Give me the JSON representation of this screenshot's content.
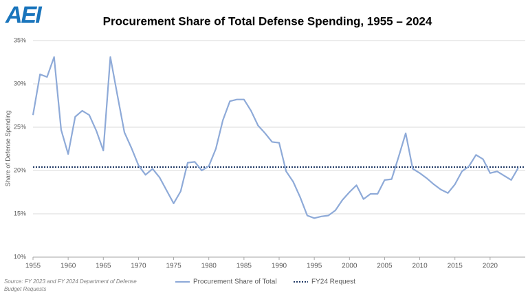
{
  "chart_data": {
    "type": "line",
    "logo": "AEI",
    "title": "Procurement Share of Total Defense Spending, 1955 – 2024",
    "y_label": "Share of Defense Spending",
    "source": "Source: FY 2023  and FY 2024  Department of Defense Budget Requests",
    "x": [
      1955,
      1956,
      1957,
      1958,
      1959,
      1960,
      1961,
      1962,
      1963,
      1964,
      1965,
      1966,
      1967,
      1968,
      1969,
      1970,
      1971,
      1972,
      1973,
      1974,
      1975,
      1976,
      1977,
      1978,
      1979,
      1980,
      1981,
      1982,
      1983,
      1984,
      1985,
      1986,
      1987,
      1988,
      1989,
      1990,
      1991,
      1992,
      1993,
      1994,
      1995,
      1996,
      1997,
      1998,
      1999,
      2000,
      2001,
      2002,
      2003,
      2004,
      2005,
      2006,
      2007,
      2008,
      2009,
      2010,
      2011,
      2012,
      2013,
      2014,
      2015,
      2016,
      2017,
      2018,
      2019,
      2020,
      2021,
      2022,
      2023,
      2024
    ],
    "series": [
      {
        "name": "Procurement Share of Total",
        "color": "#8eaad8",
        "values": [
          26.4,
          31.1,
          30.8,
          33.1,
          24.7,
          21.9,
          26.2,
          26.9,
          26.4,
          24.6,
          22.3,
          33.1,
          28.7,
          24.4,
          22.6,
          20.6,
          19.5,
          20.2,
          19.2,
          17.7,
          16.2,
          17.6,
          20.9,
          21.0,
          20.0,
          20.5,
          22.5,
          25.8,
          28.0,
          28.2,
          28.2,
          26.9,
          25.2,
          24.3,
          23.3,
          23.2,
          19.9,
          18.7,
          16.9,
          14.8,
          14.5,
          14.7,
          14.8,
          15.4,
          16.6,
          17.5,
          18.3,
          16.7,
          17.3,
          17.3,
          18.9,
          19.0,
          21.6,
          24.3,
          20.2,
          19.7,
          19.1,
          18.4,
          17.8,
          17.4,
          18.4,
          19.9,
          20.5,
          21.8,
          21.3,
          19.7,
          19.9,
          19.4,
          18.9,
          20.3
        ]
      }
    ],
    "reference_line": {
      "name": "FY24 Request",
      "value": 20.4,
      "color": "#1f3864"
    },
    "xlim": [
      1955,
      2025
    ],
    "xticks": [
      1955,
      1960,
      1965,
      1970,
      1975,
      1980,
      1985,
      1990,
      1995,
      2000,
      2005,
      2010,
      2015,
      2020
    ],
    "ylim": [
      10,
      35
    ],
    "yticks": [
      {
        "value": 10,
        "label": "10%"
      },
      {
        "value": 15,
        "label": "15%"
      },
      {
        "value": 20,
        "label": "20%"
      },
      {
        "value": 25,
        "label": "25%"
      },
      {
        "value": 30,
        "label": "30%"
      },
      {
        "value": 35,
        "label": "35%"
      }
    ],
    "grid": true
  }
}
